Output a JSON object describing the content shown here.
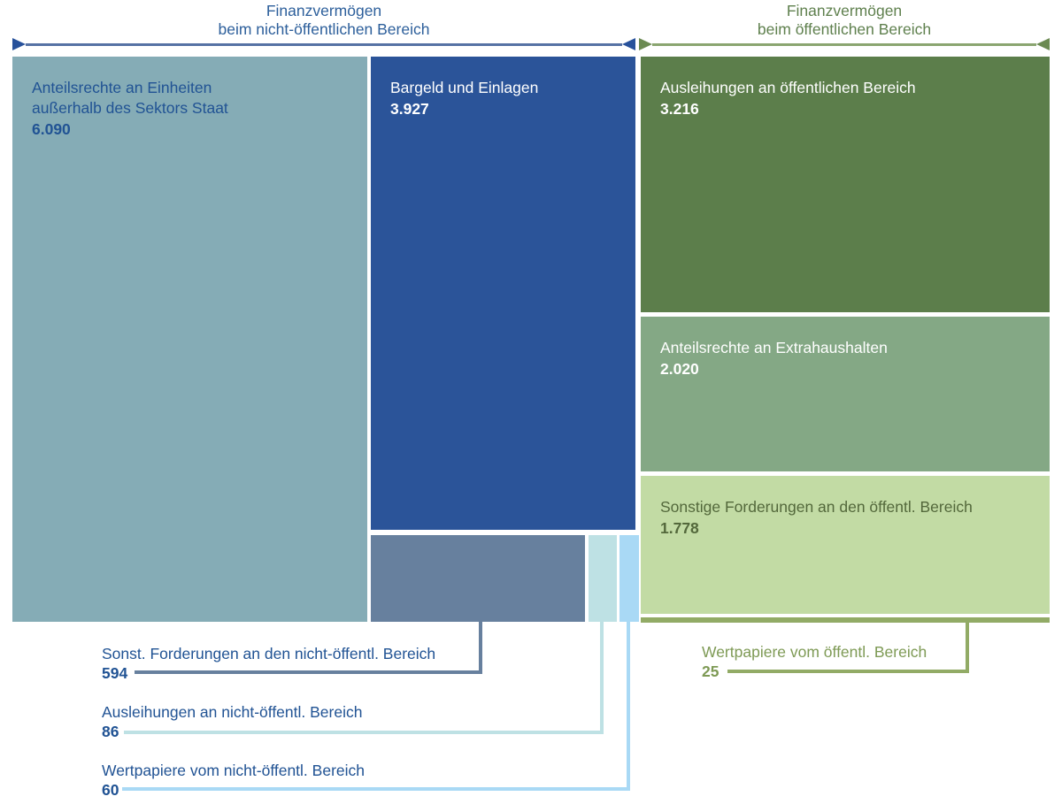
{
  "colors": {
    "tile_equity_nonpublic": "#85acb6",
    "tile_cash_deposits": "#2b5499",
    "tile_other_claims_nonpublic": "#67809e",
    "tile_loans_nonpublic": "#bee1e4",
    "tile_securities_nonpublic": "#a9d9f5",
    "tile_loans_public": "#5c7e4b",
    "tile_equity_extrabudget": "#84a885",
    "tile_other_claims_public": "#c2dba4",
    "tile_securities_public": "#92ab66",
    "header_blue": "#2d5f9b",
    "header_green": "#5f804e",
    "label_blue": "#215394",
    "label_green_dark": "#53683b",
    "label_olive": "#7e9a55"
  },
  "chart_data": {
    "type": "treemap",
    "legend_position": "none",
    "grid": false,
    "groups": [
      {
        "title_line1": "Finanzvermögen",
        "title_line2": "beim nicht-öffentlichen Bereich",
        "color_theme": "blue",
        "items": [
          {
            "label": "Anteilsrechte an Einheiten außerhalb des Sektors Staat",
            "value": 6090,
            "display": "6.090",
            "color": "#85acb6"
          },
          {
            "label": "Bargeld und Einlagen",
            "value": 3927,
            "display": "3.927",
            "color": "#2b5499"
          },
          {
            "label": "Sonst. Forderungen an den nicht-öffentl. Bereich",
            "value": 594,
            "display": "594",
            "color": "#67809e"
          },
          {
            "label": "Ausleihungen an nicht-öffentl. Bereich",
            "value": 86,
            "display": "86",
            "color": "#bee1e4"
          },
          {
            "label": "Wertpapiere vom nicht-öffentl. Bereich",
            "value": 60,
            "display": "60",
            "color": "#a9d9f5"
          }
        ]
      },
      {
        "title_line1": "Finanzvermögen",
        "title_line2": "beim öffentlichen Bereich",
        "color_theme": "green",
        "items": [
          {
            "label": "Ausleihungen an öffentlichen Bereich",
            "value": 3216,
            "display": "3.216",
            "color": "#5c7e4b"
          },
          {
            "label": "Anteilsrechte an Extrahaushalten",
            "value": 2020,
            "display": "2.020",
            "color": "#84a885"
          },
          {
            "label": "Sonstige Forderungen an den öffentl. Bereich",
            "value": 1778,
            "display": "1.778",
            "color": "#c2dba4"
          },
          {
            "label": "Wertpapiere vom öffentl. Bereich",
            "value": 25,
            "display": "25",
            "color": "#92ab66"
          }
        ]
      }
    ]
  }
}
